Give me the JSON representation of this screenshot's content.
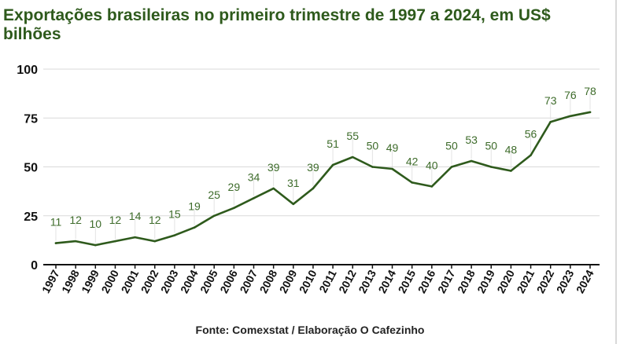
{
  "title": "Exportações brasileiras no primeiro trimestre de 1997 a 2024, em US$ bilhões",
  "source": "Fonte: Comexstat / Elaboração O Cafezinho",
  "colors": {
    "line": "#2e5a1c",
    "labels": "#3d6b2a",
    "title": "#2e5a1c",
    "grid": "#d9d9d9",
    "axis": "#111111"
  },
  "chart_data": {
    "type": "line",
    "title": "Exportações brasileiras no primeiro trimestre de 1997 a 2024, em US$ bilhões",
    "xlabel": "",
    "ylabel": "",
    "ylim": [
      0,
      100
    ],
    "yticks": [
      0,
      25,
      50,
      75,
      100
    ],
    "grid": true,
    "categories": [
      "1997",
      "1998",
      "1999",
      "2000",
      "2001",
      "2002",
      "2003",
      "2004",
      "2005",
      "2006",
      "2007",
      "2008",
      "2009",
      "2010",
      "2011",
      "2012",
      "2013",
      "2014",
      "2015",
      "2016",
      "2017",
      "2018",
      "2019",
      "2020",
      "2021",
      "2022",
      "2023",
      "2024"
    ],
    "series": [
      {
        "values": [
          11,
          12,
          10,
          12,
          14,
          12,
          15,
          19,
          25,
          29,
          34,
          39,
          31,
          39,
          51,
          55,
          50,
          49,
          42,
          40,
          50,
          53,
          50,
          48,
          56,
          73,
          76,
          78
        ]
      }
    ]
  }
}
